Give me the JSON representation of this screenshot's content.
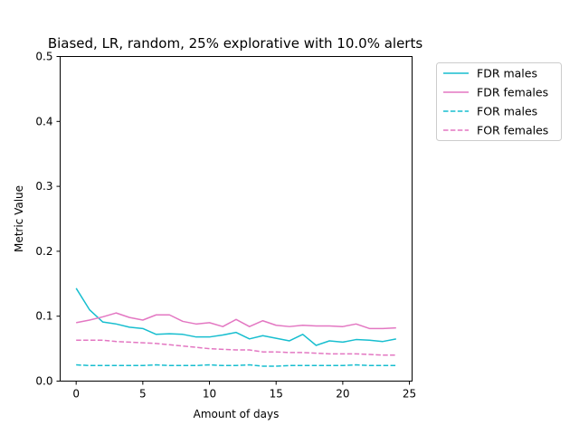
{
  "chart_data": {
    "type": "line",
    "title": "Biased, LR, random, 25% explorative with 10.0% alerts",
    "xlabel": "Amount of days",
    "ylabel": "Metric Value",
    "xlim": [
      -1.2,
      25.2
    ],
    "ylim": [
      0,
      0.5
    ],
    "xticks": [
      0,
      5,
      10,
      15,
      20,
      25
    ],
    "xtick_labels": [
      "0",
      "5",
      "10",
      "15",
      "20",
      "25"
    ],
    "yticks": [
      0,
      0.1,
      0.2,
      0.3,
      0.4,
      0.5
    ],
    "ytick_labels": [
      "0.0",
      "0.1",
      "0.2",
      "0.3",
      "0.4",
      "0.5"
    ],
    "grid": false,
    "legend_position": "outside-top-right",
    "x": [
      0,
      1,
      2,
      3,
      4,
      5,
      6,
      7,
      8,
      9,
      10,
      11,
      12,
      13,
      14,
      15,
      16,
      17,
      18,
      19,
      20,
      21,
      22,
      23,
      24
    ],
    "series": [
      {
        "name": "FDR males",
        "color": "#17becf",
        "dash": "solid",
        "values": [
          0.143,
          0.11,
          0.091,
          0.088,
          0.083,
          0.081,
          0.072,
          0.073,
          0.072,
          0.068,
          0.068,
          0.071,
          0.075,
          0.065,
          0.07,
          0.066,
          0.062,
          0.072,
          0.055,
          0.062,
          0.06,
          0.064,
          0.063,
          0.061,
          0.065
        ]
      },
      {
        "name": "FDR females",
        "color": "#e377c2",
        "dash": "solid",
        "values": [
          0.09,
          0.094,
          0.099,
          0.105,
          0.098,
          0.094,
          0.102,
          0.102,
          0.092,
          0.088,
          0.09,
          0.084,
          0.095,
          0.084,
          0.093,
          0.086,
          0.084,
          0.086,
          0.085,
          0.085,
          0.084,
          0.088,
          0.081,
          0.081,
          0.082
        ]
      },
      {
        "name": "FOR males",
        "color": "#17becf",
        "dash": "dashed",
        "values": [
          0.025,
          0.024,
          0.024,
          0.024,
          0.024,
          0.024,
          0.025,
          0.024,
          0.024,
          0.024,
          0.025,
          0.024,
          0.024,
          0.025,
          0.023,
          0.023,
          0.024,
          0.024,
          0.024,
          0.024,
          0.024,
          0.025,
          0.024,
          0.024,
          0.024
        ]
      },
      {
        "name": "FOR females",
        "color": "#e377c2",
        "dash": "dashed",
        "values": [
          0.063,
          0.063,
          0.063,
          0.061,
          0.06,
          0.059,
          0.058,
          0.056,
          0.054,
          0.052,
          0.05,
          0.049,
          0.048,
          0.048,
          0.045,
          0.045,
          0.044,
          0.044,
          0.043,
          0.042,
          0.042,
          0.042,
          0.041,
          0.04,
          0.04
        ]
      }
    ]
  }
}
